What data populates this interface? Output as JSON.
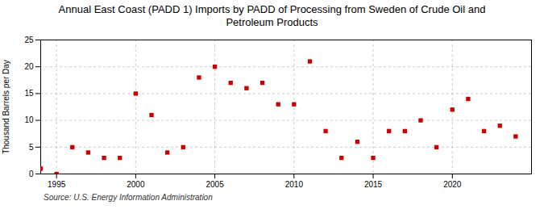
{
  "chart_data": {
    "type": "scatter",
    "title": "Annual East Coast (PADD 1) Imports by PADD of Processing from Sweden of Crude Oil and\nPetroleum Products",
    "ylabel": "Thousand Barrels per Day",
    "source": "Source: U.S. Energy Information Administration",
    "x": [
      1994,
      1995,
      1996,
      1997,
      1998,
      1999,
      2000,
      2001,
      2002,
      2003,
      2004,
      2005,
      2006,
      2007,
      2008,
      2009,
      2010,
      2011,
      2012,
      2013,
      2014,
      2015,
      2016,
      2017,
      2018,
      2019,
      2020,
      2021,
      2022,
      2023,
      2024
    ],
    "values": [
      1,
      0,
      5,
      4,
      3,
      3,
      15,
      11,
      4,
      5,
      18,
      20,
      17,
      16,
      17,
      13,
      13,
      21,
      8,
      3,
      6,
      3,
      8,
      8,
      10,
      5,
      12,
      14,
      8,
      9,
      7
    ],
    "color": "#cc0000",
    "marker": "square",
    "xlim": [
      1994,
      2025
    ],
    "ylim": [
      0,
      25
    ],
    "xticks": [
      1995,
      2000,
      2005,
      2010,
      2015,
      2020
    ],
    "yticks": [
      0,
      5,
      10,
      15,
      20,
      25
    ],
    "grid": true
  }
}
